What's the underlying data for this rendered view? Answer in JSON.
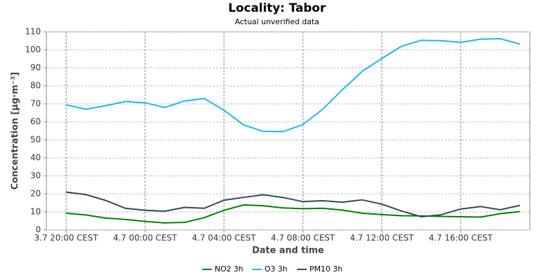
{
  "chart_data": {
    "type": "line",
    "title": "Locality: Tabor",
    "subtitle": "Actual unverified data",
    "x_label": "Date and time",
    "y_label": "Concentration [µg·m⁻³]",
    "x": [
      0,
      1,
      2,
      3,
      4,
      5,
      6,
      7,
      8,
      9,
      10,
      11,
      12,
      13,
      14,
      15,
      16,
      17,
      18,
      19,
      20,
      21,
      22,
      23
    ],
    "xlim": [
      -1,
      23.5
    ],
    "xticks": [
      {
        "value": 0,
        "label": "3.7 20:00 CEST"
      },
      {
        "value": 4,
        "label": "4.7 00:00 CEST"
      },
      {
        "value": 8,
        "label": "4.7 04:00 CEST"
      },
      {
        "value": 12,
        "label": "4.7 08:00 CEST"
      },
      {
        "value": 16,
        "label": "4.7 12:00 CEST"
      },
      {
        "value": 20,
        "label": "4.7 16:00 CEST"
      }
    ],
    "ylim": [
      0,
      110
    ],
    "yticks": [
      0,
      10,
      20,
      30,
      40,
      50,
      60,
      70,
      80,
      90,
      100,
      110
    ],
    "grid": true,
    "legend": "bottom",
    "series": [
      {
        "name": "NO2 3h",
        "color": "#008000",
        "values": [
          9.3,
          8.3,
          6.6,
          5.8,
          4.7,
          3.9,
          4.2,
          6.8,
          10.9,
          13.9,
          13.4,
          12.2,
          11.8,
          12,
          11,
          9.3,
          8.5,
          7.9,
          7.8,
          7.5,
          7.3,
          7.1,
          9,
          10.2
        ]
      },
      {
        "name": "O3 3h",
        "color": "#1cb8f0",
        "values": [
          69.5,
          67,
          69,
          71.3,
          70.6,
          68,
          71.6,
          73,
          66.5,
          58.3,
          54.7,
          54.6,
          58.5,
          67,
          77.8,
          88,
          95.2,
          102,
          105.3,
          105.1,
          104.2,
          105.9,
          106.2,
          103.2
        ]
      },
      {
        "name": "PM10 3h",
        "color": "#2e4a50",
        "values": [
          21,
          19.6,
          16.4,
          12,
          10.9,
          10.4,
          12.5,
          12,
          16.5,
          18.1,
          19.5,
          18,
          15.7,
          16.2,
          15.4,
          16.7,
          14.3,
          10.5,
          7.3,
          8.4,
          11.6,
          13,
          11.2,
          13.6
        ]
      }
    ]
  }
}
